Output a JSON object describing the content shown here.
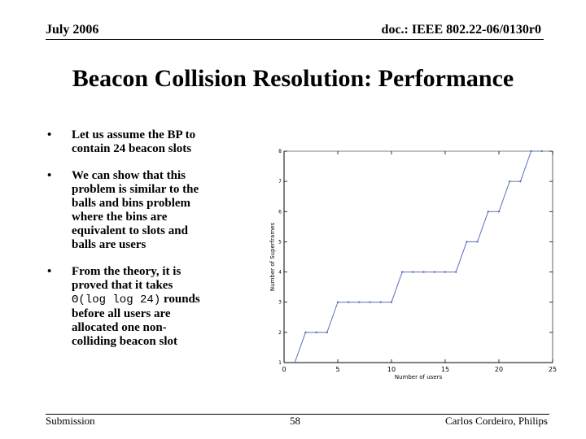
{
  "header": {
    "date": "July 2006",
    "doc_id": "doc.: IEEE 802.22-06/0130r0"
  },
  "title": "Beacon Collision Resolution: Performance",
  "bullets": [
    {
      "marker": "•",
      "lines": [
        "Let us assume the BP to",
        "contain 24 beacon slots"
      ]
    },
    {
      "marker": "•",
      "lines": [
        "We can show that this",
        "problem is similar to the",
        "balls and bins problem",
        "where the bins are",
        "equivalent to slots and",
        "balls are users"
      ]
    },
    {
      "marker": "•",
      "lines_before": [
        "From the theory, it is",
        "proved that it takes"
      ],
      "formula": "Θ(log log 24)",
      "formula_tail": " rounds",
      "lines_after": [
        "before all users are",
        "allocated one non-",
        "colliding beacon slot"
      ]
    }
  ],
  "footer": {
    "left": "Submission",
    "page": "58",
    "right": "Carlos Cordeiro, Philips"
  },
  "colors": {
    "line": "#5b6fbd",
    "axis": "#000000"
  },
  "chart_data": {
    "type": "line",
    "title": "",
    "xlabel": "Number of users",
    "ylabel": "Number of Superframes",
    "xlim": [
      0,
      25
    ],
    "ylim": [
      1,
      8
    ],
    "xticks": [
      0,
      5,
      10,
      15,
      20,
      25
    ],
    "yticks": [
      1,
      2,
      3,
      4,
      5,
      6,
      7,
      8
    ],
    "series": [
      {
        "name": "Superframes",
        "x": [
          1,
          2,
          3,
          4,
          5,
          6,
          7,
          8,
          9,
          10,
          11,
          12,
          13,
          14,
          15,
          16,
          17,
          18,
          19,
          20,
          21,
          22,
          23,
          24
        ],
        "y": [
          1,
          2,
          2,
          2,
          3,
          3,
          3,
          3,
          3,
          3,
          4,
          4,
          4,
          4,
          4,
          4,
          5,
          5,
          6,
          6,
          7,
          7,
          8,
          8
        ]
      }
    ]
  }
}
